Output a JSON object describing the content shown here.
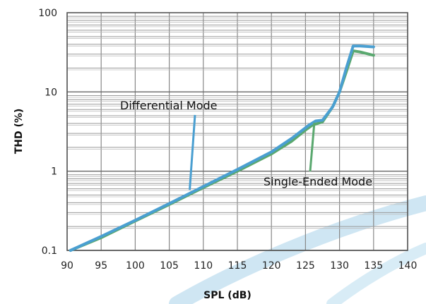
{
  "chart_data": {
    "type": "line",
    "xlabel": "SPL (dB)",
    "ylabel": "THD (%)",
    "xlim": [
      90,
      140
    ],
    "ylim": [
      0.1,
      100
    ],
    "y_scale": "log",
    "grid": true,
    "x_ticks": [
      "90",
      "95",
      "100",
      "105",
      "110",
      "115",
      "120",
      "125",
      "130",
      "135",
      "140"
    ],
    "y_ticks": [
      "0.1",
      "1",
      "10",
      "100"
    ],
    "series": [
      {
        "name": "Differential Mode",
        "color": "#4a9fd1",
        "x": [
          90.5,
          95,
          100,
          105,
          110,
          115,
          120,
          123,
          125.5,
          126.5,
          127.5,
          129,
          130,
          131,
          132,
          133,
          135
        ],
        "y": [
          0.1,
          0.15,
          0.24,
          0.39,
          0.64,
          1.05,
          1.75,
          2.6,
          3.8,
          4.3,
          4.4,
          6.5,
          10,
          20,
          38,
          38,
          37
        ]
      },
      {
        "name": "Single-Ended Mode",
        "color": "#5aa86f",
        "x": [
          90.5,
          95,
          100,
          105,
          110,
          115,
          120,
          123,
          125,
          126,
          127.5,
          129,
          130,
          131,
          132,
          133,
          135
        ],
        "y": [
          0.1,
          0.145,
          0.235,
          0.38,
          0.62,
          1.0,
          1.65,
          2.4,
          3.3,
          3.8,
          4.2,
          6.5,
          10,
          18,
          33,
          32,
          29
        ]
      }
    ],
    "annotations": [
      {
        "text": "Differential Mode",
        "series": 0
      },
      {
        "text": "Single-Ended Mode",
        "series": 1
      }
    ]
  }
}
